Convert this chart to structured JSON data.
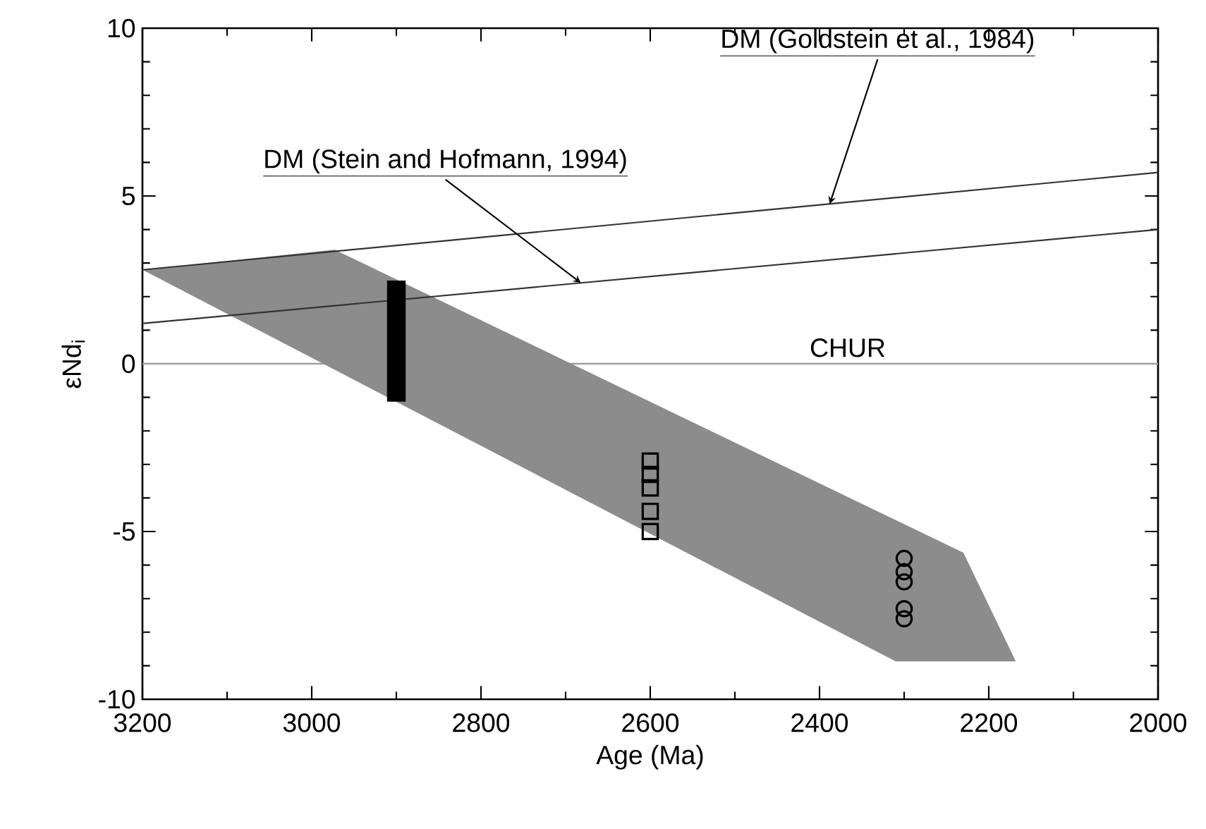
{
  "chart_data": {
    "type": "area",
    "xlabel": "Age (Ma)",
    "ylabel": "εNd$_{i}$",
    "xlim": [
      3200,
      2000
    ],
    "ylim": [
      -10,
      10
    ],
    "xticks": [
      3200,
      3000,
      2800,
      2600,
      2400,
      2200,
      2000
    ],
    "yticks": [
      -10,
      -5,
      0,
      5,
      10
    ],
    "grid": false,
    "series": [
      {
        "color": "#8c8c8c",
        "x": [
          3200,
          2973,
          2230,
          2168,
          2310,
          3200
        ],
        "values": [
          2.8,
          3.4,
          -5.63,
          -8.87,
          -8.87,
          2.8
        ]
      },
      {
        "type": "line",
        "color": "#333333",
        "x": [
          3200,
          2000
        ],
        "values": [
          2.8,
          5.7
        ],
        "marker": "none",
        "line_style": "solid"
      },
      {
        "type": "line",
        "color": "#333333",
        "x": [
          3200,
          2000
        ],
        "values": [
          1.2,
          4.0
        ],
        "marker": "none",
        "line_style": "solid"
      },
      {
        "type": "bar",
        "color": "#000000",
        "x": [
          2900
        ],
        "base": [
          -1.13
        ],
        "values": [
          3.61
        ]
      },
      {
        "type": "scatter",
        "color": "#000000",
        "marker": "square",
        "x": [
          2600,
          2600,
          2600,
          2600,
          2600
        ],
        "values": [
          -2.9,
          -3.3,
          -3.7,
          -4.4,
          -5.0
        ]
      },
      {
        "type": "scatter",
        "color": "#000000",
        "marker": "circle",
        "x": [
          2300,
          2300,
          2300,
          2300,
          2300
        ],
        "values": [
          -5.8,
          -6.2,
          -6.5,
          -7.3,
          -7.6
        ]
      }
    ],
    "ref_lines": [
      {
        "axis": "y",
        "value": 0,
        "label": "CHUR",
        "color": "#a0a0a0"
      }
    ],
    "annotations": [
      {
        "text": "DM (Goldstein et al., 1984)",
        "x": 2388,
        "y": 4.76
      },
      {
        "text": "DM (Stein and Hofmann, 1994)",
        "x": 2682,
        "y": 2.41
      }
    ]
  }
}
